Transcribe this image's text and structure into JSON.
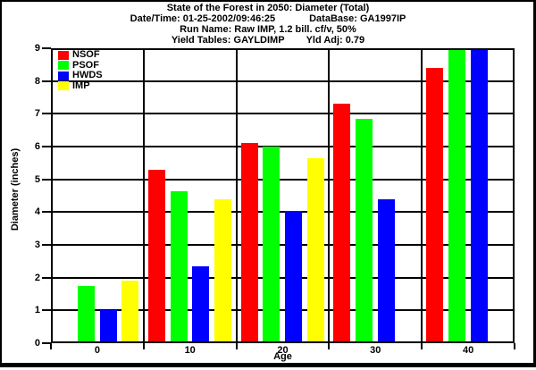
{
  "header": {
    "line1": "State of the Forest in 2050: Diameter (Total)",
    "line2_left": "Date/Time: 01-25-2002/09:46:25",
    "line2_right": "DataBase: GA1997IP",
    "line3": "Run Name: Raw IMP, 1.2 bill. cf/v, 50%",
    "line4_left": "Yield Tables: GAYLDIMP",
    "line4_right": "Yld Adj: 0.79"
  },
  "chart_data": {
    "type": "bar",
    "title": "State of the Forest in 2050: Diameter (Total)",
    "xlabel": "Age",
    "ylabel": "Diameter (inches)",
    "ylim": [
      0,
      9
    ],
    "y_ticks": [
      0,
      1,
      2,
      3,
      4,
      5,
      6,
      7,
      8,
      9
    ],
    "categories": [
      "0",
      "10",
      "20",
      "30",
      "40"
    ],
    "grid": true,
    "legend_position": "top-left-inside",
    "background_color": "#ffffff",
    "axis_color": "#000000",
    "series": [
      {
        "name": "NSOF",
        "color": "#ff0000",
        "values": [
          null,
          5.3,
          6.1,
          7.3,
          8.4
        ]
      },
      {
        "name": "PSOF",
        "color": "#00ff00",
        "values": [
          1.75,
          4.65,
          6.0,
          6.85,
          8.95
        ]
      },
      {
        "name": "HWDS",
        "color": "#0000ff",
        "values": [
          1.0,
          2.35,
          4.05,
          4.4,
          8.95
        ]
      },
      {
        "name": "IMP",
        "color": "#ffff00",
        "values": [
          1.9,
          4.4,
          5.65,
          null,
          null
        ]
      }
    ]
  }
}
